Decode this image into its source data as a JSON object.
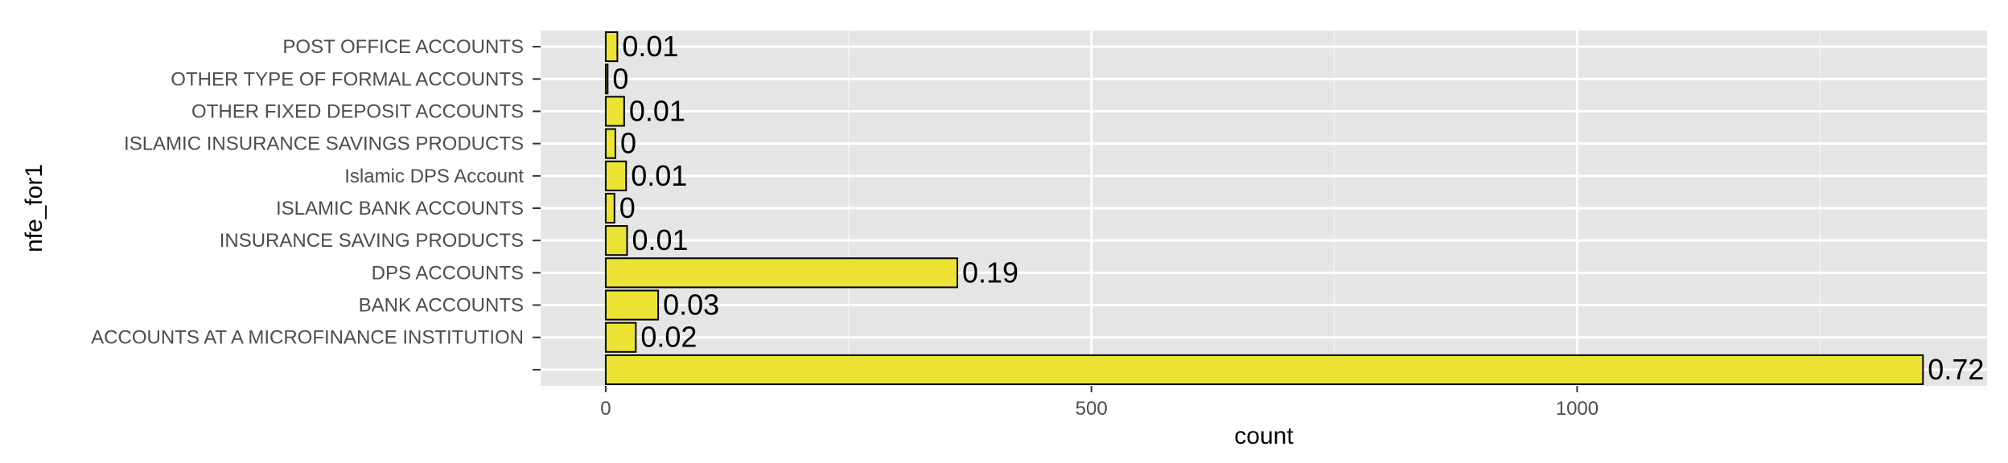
{
  "chart_data": {
    "type": "bar",
    "orientation": "horizontal",
    "xlabel": "count",
    "ylabel": "nfe_for1",
    "xlim": [
      -67,
      1422
    ],
    "x_ticks": [
      0,
      500,
      1000
    ],
    "x_tick_labels": [
      "0",
      "500",
      "1000"
    ],
    "grid": true,
    "categories": [
      "",
      "ACCOUNTS AT A MICROFINANCE INSTITUTION ",
      "BANK ACCOUNTS",
      "DPS ACCOUNTS",
      "INSURANCE SAVING PRODUCTS",
      "ISLAMIC BANK ACCOUNTS",
      "Islamic DPS Account",
      "ISLAMIC INSURANCE SAVINGS PRODUCTS",
      "OTHER FIXED DEPOSIT ACCOUNTS",
      "OTHER TYPE OF FORMAL ACCOUNTS",
      "POST OFFICE ACCOUNTS"
    ],
    "values": [
      1356,
      31,
      54,
      362,
      22,
      9,
      21,
      10,
      19,
      2,
      12
    ],
    "data_labels": [
      "0.72",
      "0.02",
      "0.03",
      "0.19",
      "0.01",
      "0",
      "0.01",
      "0",
      "0.01",
      "0",
      "0.01"
    ],
    "colors": {
      "bar_fill": "#ebe234",
      "bar_stroke": "#000000",
      "panel_bg": "#e5e5e5",
      "grid_major": "#ffffff",
      "grid_minor": "#f2f2f2",
      "label_text": "#4d4d4d"
    }
  }
}
